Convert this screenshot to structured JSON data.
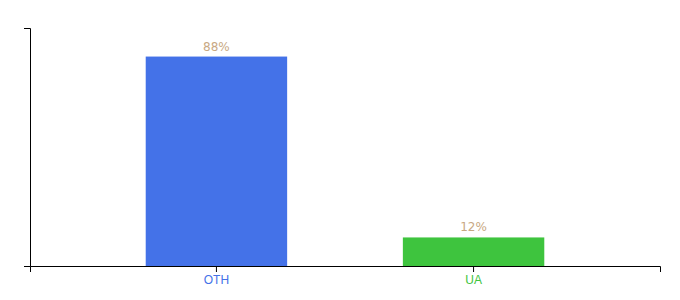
{
  "chart_data": {
    "type": "bar",
    "categories": [
      "OTH",
      "UA"
    ],
    "values": [
      88,
      12
    ],
    "value_labels": [
      "88%",
      "12%"
    ],
    "colors": [
      "#4472e8",
      "#3ec43e"
    ],
    "ylim": [
      0,
      100
    ],
    "yticks": [],
    "data_labels": true,
    "tick_labels": "x",
    "grid": false
  }
}
